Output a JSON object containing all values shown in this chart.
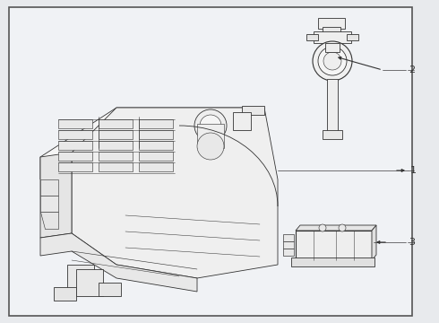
{
  "bg_color": "#e8eaed",
  "border_color": "#555555",
  "line_color": "#333333",
  "label_color": "#222222",
  "white": "#ffffff",
  "fig_width": 4.9,
  "fig_height": 3.6,
  "dpi": 100,
  "inner_bg": "#f0f2f5"
}
